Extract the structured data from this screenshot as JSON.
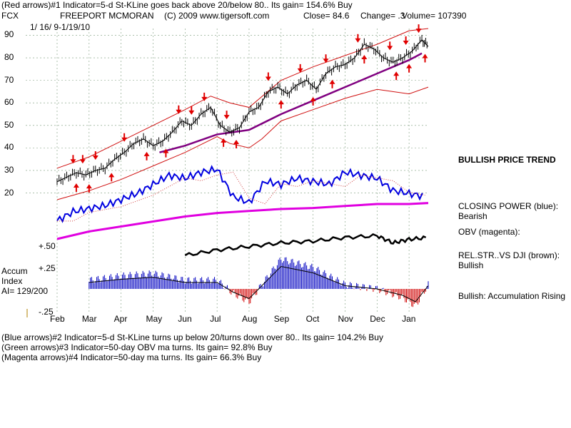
{
  "header": {
    "line1": "(Red arrows)#1 Indicator=5-d St-KLine goes back above 20/below 80.. Its gain= 154.6% Buy",
    "symbol": "FCX",
    "company": "FREEPORT MCMORAN",
    "copyright": "(C) 2009 www.tigersoft.com",
    "close": "Close=  84.6",
    "change": "Change= .3",
    "volume": "Volume= 107390",
    "daterange": "1/ 16/ 9-1/19/10"
  },
  "side_labels": {
    "trend": "BULLISH PRICE TREND",
    "closing_power_title": "CLOSING POWER (blue):",
    "closing_power_value": "Bearish",
    "obv_title": "OBV (magenta):",
    "relstr_title": "REL.STR..VS DJI (brown):",
    "relstr_value": "Bullish",
    "accum_text": "Bullish: Accumulation Rising"
  },
  "accum": {
    "title1": "Accum",
    "title2": "Index",
    "ai": "AI= 129/200",
    "p50": "+.50",
    "p25": "+.25",
    "m25": "-.25"
  },
  "footer": {
    "line1": "(Blue arrows)#2 Indicator=5-d St-KLine turns up below 20/turns down over 80.. Its gain= 104.2% Buy",
    "line2": "(Green arrows)#3 Indicator=50-day OBV ma turns. Its gain= 92.8% Buy",
    "line3": "(Magenta arrows)#4 Indicator=50-day ma turns. Its gain= 66.3% Buy"
  },
  "chart_data": {
    "type": "line",
    "title": "FREEPORT MCMORAN",
    "xlabel": "",
    "ylabel": "",
    "x_months": [
      "Feb",
      "Mar",
      "Apr",
      "May",
      "Jun",
      "Jul",
      "Aug",
      "Sep",
      "Oct",
      "Nov",
      "Dec",
      "Jan"
    ],
    "y_ticks": [
      20,
      30,
      40,
      50,
      60,
      70,
      80,
      90
    ],
    "ylim": [
      17,
      93
    ],
    "grid": true,
    "price_series": {
      "name": "Close",
      "x": [
        0,
        0.3,
        0.6,
        0.9,
        1.2,
        1.5,
        1.8,
        2.1,
        2.4,
        2.7,
        3.0,
        3.3,
        3.6,
        3.9,
        4.2,
        4.5,
        4.8,
        5.1,
        5.4,
        5.7,
        6.0,
        6.3,
        6.6,
        6.9,
        7.2,
        7.5,
        7.8,
        8.1,
        8.4,
        8.7,
        9.0,
        9.3,
        9.6,
        9.9,
        10.2,
        10.5,
        10.8,
        11.1,
        11.4,
        11.6
      ],
      "y": [
        25,
        27,
        29,
        28,
        30,
        31,
        35,
        38,
        42,
        44,
        41,
        43,
        47,
        52,
        50,
        55,
        58,
        50,
        47,
        49,
        56,
        58,
        65,
        67,
        64,
        68,
        70,
        66,
        73,
        76,
        77,
        80,
        86,
        84,
        80,
        78,
        80,
        83,
        88,
        85
      ]
    },
    "moving_average": {
      "name": "50-day ma",
      "x": [
        3.2,
        4,
        5,
        6,
        7,
        8,
        9,
        10,
        11,
        11.4
      ],
      "y": [
        38,
        41,
        46,
        48,
        55,
        61,
        67,
        73,
        79,
        82
      ]
    },
    "upper_band": {
      "x": [
        0,
        1,
        2,
        3,
        4,
        4.8,
        5.4,
        6,
        7,
        8,
        9,
        10,
        11,
        11.6
      ],
      "y": [
        31,
        36,
        43,
        50,
        57,
        63,
        60,
        58,
        70,
        76,
        81,
        86,
        92,
        93
      ]
    },
    "lower_band": {
      "x": [
        0,
        1,
        2,
        3,
        4,
        5,
        5.4,
        6,
        6.4,
        7,
        8,
        9,
        10,
        11,
        11.6
      ],
      "y": [
        17,
        21,
        26,
        32,
        38,
        45,
        42,
        40,
        44,
        52,
        57,
        62,
        66,
        64,
        67
      ]
    },
    "red_arrows_down_x": [
      0.5,
      0.8,
      1.2,
      2.1,
      3.8,
      4.2,
      4.6,
      5.3,
      6.6,
      7.6,
      8.4,
      9.4,
      10.4,
      10.9,
      11.3
    ],
    "red_arrows_up_x": [
      0.6,
      1.0,
      1.7,
      2.8,
      3.4,
      5.2,
      5.6,
      7.0,
      8.0,
      8.6,
      9.6,
      10.6,
      11.0,
      11.5
    ],
    "closing_power": {
      "name": "CLOSING POWER (blue)",
      "x": [
        0,
        0.5,
        1,
        1.5,
        2,
        2.5,
        3,
        3.5,
        4,
        4.5,
        5,
        5.5,
        6,
        6.5,
        7,
        7.5,
        8,
        8.5,
        9,
        9.5,
        10,
        10.5,
        11,
        11.5
      ],
      "y": [
        0.1,
        0.25,
        0.3,
        0.35,
        0.45,
        0.55,
        0.7,
        0.85,
        0.8,
        0.9,
        0.95,
        0.5,
        0.4,
        0.75,
        0.7,
        0.8,
        0.75,
        0.7,
        0.9,
        0.85,
        0.8,
        0.6,
        0.55,
        0.5
      ]
    },
    "obv": {
      "name": "OBV (magenta)",
      "x": [
        0,
        1,
        2,
        3,
        4,
        5,
        6,
        7,
        8,
        9,
        10,
        11,
        11.6
      ],
      "y": [
        0.1,
        0.25,
        0.35,
        0.45,
        0.55,
        0.62,
        0.66,
        0.7,
        0.72,
        0.76,
        0.8,
        0.8,
        0.82
      ]
    },
    "rel_strength": {
      "name": "REL.STR..VS DJI (brown)",
      "x": [
        4,
        5,
        6,
        7,
        8,
        9,
        10,
        10.5,
        11,
        11.6
      ],
      "y": [
        0.2,
        0.35,
        0.45,
        0.55,
        0.6,
        0.7,
        0.75,
        0.55,
        0.65,
        0.7
      ]
    },
    "accumulation_index": {
      "name": "Accum Index",
      "x": [
        1,
        2,
        3,
        4,
        5,
        5.5,
        6,
        7,
        7.5,
        8,
        9,
        10,
        10.8,
        11.2,
        11.6
      ],
      "y": [
        0.1,
        0.15,
        0.18,
        0.1,
        0.1,
        -0.05,
        -0.15,
        0.35,
        0.3,
        0.25,
        0.05,
        0.0,
        -0.1,
        -0.2,
        0.05
      ]
    }
  }
}
